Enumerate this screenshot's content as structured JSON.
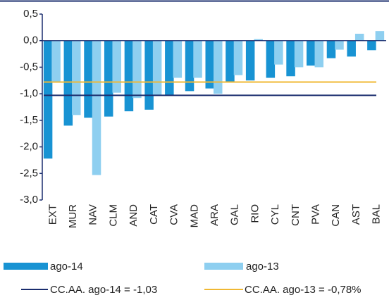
{
  "chart_data": {
    "type": "bar",
    "categories": [
      "EXT",
      "MUR",
      "NAV",
      "CLM",
      "AND",
      "CAT",
      "CVA",
      "MAD",
      "ARA",
      "GAL",
      "RIO",
      "CYL",
      "CNT",
      "PVA",
      "CAN",
      "AST",
      "BAL"
    ],
    "series": [
      {
        "name": "ago-14",
        "color": "#1893d3",
        "values": [
          -2.22,
          -1.6,
          -1.45,
          -1.43,
          -1.33,
          -1.3,
          -1.03,
          -0.95,
          -0.9,
          -0.78,
          -0.75,
          -0.7,
          -0.67,
          -0.47,
          -0.33,
          -0.3,
          -0.18
        ]
      },
      {
        "name": "ago-13",
        "color": "#8ecff0",
        "values": [
          -0.78,
          -1.4,
          -2.53,
          -0.98,
          -1.08,
          -1.03,
          -0.7,
          -0.7,
          -1.0,
          -0.65,
          0.03,
          -0.45,
          -0.5,
          -0.5,
          -0.17,
          0.13,
          0.18
        ]
      }
    ],
    "reference_lines": [
      {
        "name": "CC.AA. ago-14 = -1,03",
        "value": -1.03,
        "color": "#1a2d6e"
      },
      {
        "name": "CC.AA. ago-13 = -0,78%",
        "value": -0.78,
        "color": "#f0b833"
      }
    ],
    "ylim": [
      -3.0,
      0.5
    ],
    "yticks": [
      {
        "value": 0.5,
        "label": "0,5"
      },
      {
        "value": 0.0,
        "label": "0,0"
      },
      {
        "value": -0.5,
        "label": "-0,5"
      },
      {
        "value": -1.0,
        "label": "-1,0"
      },
      {
        "value": -1.5,
        "label": "-1,5"
      },
      {
        "value": -2.0,
        "label": "-2,0"
      },
      {
        "value": -2.5,
        "label": "-2,5"
      },
      {
        "value": -3.0,
        "label": "-3,0"
      }
    ]
  }
}
